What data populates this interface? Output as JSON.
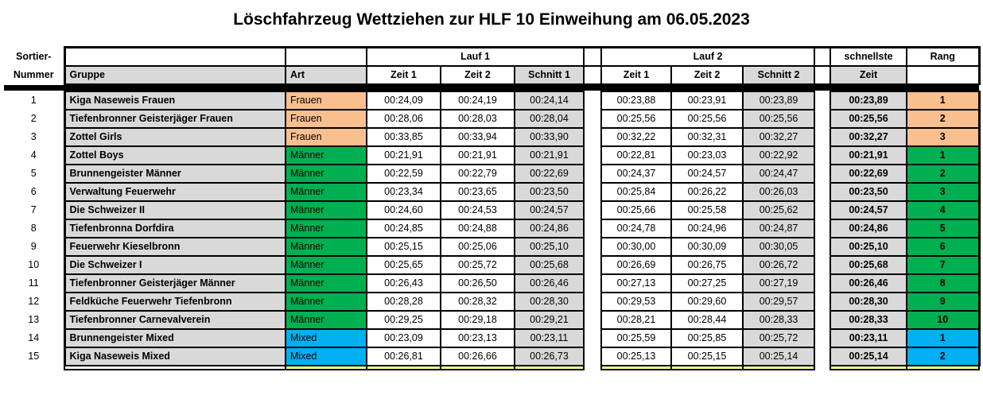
{
  "title": "Löschfahrzeug Wettziehen zur HLF 10 Einweihung am 06.05.2023",
  "header": {
    "sortier_line1": "Sortier-",
    "sortier_line2": "Nummer",
    "gruppe": "Gruppe",
    "art": "Art",
    "lauf1": "Lauf 1",
    "lauf2": "Lauf 2",
    "zeit1": "Zeit 1",
    "zeit2": "Zeit 2",
    "schnitt1": "Schnitt 1",
    "schnitt2": "Schnitt 2",
    "schnellste_line1": "schnellste",
    "schnellste_line2": "Zeit",
    "rang": "Rang"
  },
  "colors": {
    "Frauen": "#FABF8F",
    "Männer": "#00B050",
    "Mixed": "#00B0F0",
    "header_gray": "#D9D9D9",
    "partial_row_yellow": "#FFFF99"
  },
  "rows": [
    {
      "nr": "1",
      "gruppe": "Kiga Naseweis Frauen",
      "art": "Frauen",
      "l1z1": "00:24,09",
      "l1z2": "00:24,19",
      "l1s": "00:24,14",
      "l2z1": "00:23,88",
      "l2z2": "00:23,91",
      "l2s": "00:23,89",
      "best": "00:23,89",
      "rang": "1"
    },
    {
      "nr": "2",
      "gruppe": "Tiefenbronner Geisterjäger Frauen",
      "art": "Frauen",
      "l1z1": "00:28,06",
      "l1z2": "00:28,03",
      "l1s": "00:28,04",
      "l2z1": "00:25,56",
      "l2z2": "00:25,56",
      "l2s": "00:25,56",
      "best": "00:25,56",
      "rang": "2"
    },
    {
      "nr": "3",
      "gruppe": "Zottel Girls",
      "art": "Frauen",
      "l1z1": "00:33,85",
      "l1z2": "00:33,94",
      "l1s": "00:33,90",
      "l2z1": "00:32,22",
      "l2z2": "00:32,31",
      "l2s": "00:32,27",
      "best": "00:32,27",
      "rang": "3"
    },
    {
      "nr": "4",
      "gruppe": "Zottel Boys",
      "art": "Männer",
      "l1z1": "00:21,91",
      "l1z2": "00:21,91",
      "l1s": "00:21,91",
      "l2z1": "00:22,81",
      "l2z2": "00:23,03",
      "l2s": "00:22,92",
      "best": "00:21,91",
      "rang": "1"
    },
    {
      "nr": "5",
      "gruppe": "Brunnengeister Männer",
      "art": "Männer",
      "l1z1": "00:22,59",
      "l1z2": "00:22,79",
      "l1s": "00:22,69",
      "l2z1": "00:24,37",
      "l2z2": "00:24,57",
      "l2s": "00:24,47",
      "best": "00:22,69",
      "rang": "2"
    },
    {
      "nr": "6",
      "gruppe": "Verwaltung Feuerwehr",
      "art": "Männer",
      "l1z1": "00:23,34",
      "l1z2": "00:23,65",
      "l1s": "00:23,50",
      "l2z1": "00:25,84",
      "l2z2": "00:26,22",
      "l2s": "00:26,03",
      "best": "00:23,50",
      "rang": "3"
    },
    {
      "nr": "7",
      "gruppe": "Die Schweizer II",
      "art": "Männer",
      "l1z1": "00:24,60",
      "l1z2": "00:24,53",
      "l1s": "00:24,57",
      "l2z1": "00:25,66",
      "l2z2": "00:25,58",
      "l2s": "00:25,62",
      "best": "00:24,57",
      "rang": "4"
    },
    {
      "nr": "8",
      "gruppe": "Tiefenbronna Dorfdira",
      "art": "Männer",
      "l1z1": "00:24,85",
      "l1z2": "00:24,88",
      "l1s": "00:24,86",
      "l2z1": "00:24,78",
      "l2z2": "00:24,96",
      "l2s": "00:24,87",
      "best": "00:24,86",
      "rang": "5"
    },
    {
      "nr": "9",
      "gruppe": "Feuerwehr Kieselbronn",
      "art": "Männer",
      "l1z1": "00:25,15",
      "l1z2": "00:25,06",
      "l1s": "00:25,10",
      "l2z1": "00:30,00",
      "l2z2": "00:30,09",
      "l2s": "00:30,05",
      "best": "00:25,10",
      "rang": "6"
    },
    {
      "nr": "10",
      "gruppe": "Die Schweizer I",
      "art": "Männer",
      "l1z1": "00:25,65",
      "l1z2": "00:25,72",
      "l1s": "00:25,68",
      "l2z1": "00:26,69",
      "l2z2": "00:26,75",
      "l2s": "00:26,72",
      "best": "00:25,68",
      "rang": "7"
    },
    {
      "nr": "11",
      "gruppe": "Tiefenbronner Geisterjäger Männer",
      "art": "Männer",
      "l1z1": "00:26,43",
      "l1z2": "00:26,50",
      "l1s": "00:26,46",
      "l2z1": "00:27,13",
      "l2z2": "00:27,25",
      "l2s": "00:27,19",
      "best": "00:26,46",
      "rang": "8"
    },
    {
      "nr": "12",
      "gruppe": "Feldküche Feuerwehr Tiefenbronn",
      "art": "Männer",
      "l1z1": "00:28,28",
      "l1z2": "00:28,32",
      "l1s": "00:28,30",
      "l2z1": "00:29,53",
      "l2z2": "00:29,60",
      "l2s": "00:29,57",
      "best": "00:28,30",
      "rang": "9"
    },
    {
      "nr": "13",
      "gruppe": "Tiefenbronner Carnevalverein",
      "art": "Männer",
      "l1z1": "00:29,25",
      "l1z2": "00:29,18",
      "l1s": "00:29,21",
      "l2z1": "00:28,21",
      "l2z2": "00:28,44",
      "l2s": "00:28,33",
      "best": "00:28,33",
      "rang": "10"
    },
    {
      "nr": "14",
      "gruppe": "Brunnengeister Mixed",
      "art": "Mixed",
      "l1z1": "00:23,09",
      "l1z2": "00:23,13",
      "l1s": "00:23,11",
      "l2z1": "00:25,59",
      "l2z2": "00:25,85",
      "l2s": "00:25,72",
      "best": "00:23,11",
      "rang": "1"
    },
    {
      "nr": "15",
      "gruppe": "Kiga Naseweis Mixed",
      "art": "Mixed",
      "l1z1": "00:26,81",
      "l1z2": "00:26,66",
      "l1s": "00:26,73",
      "l2z1": "00:25,13",
      "l2z2": "00:25,15",
      "l2s": "00:25,14",
      "best": "00:25,14",
      "rang": "2"
    }
  ]
}
